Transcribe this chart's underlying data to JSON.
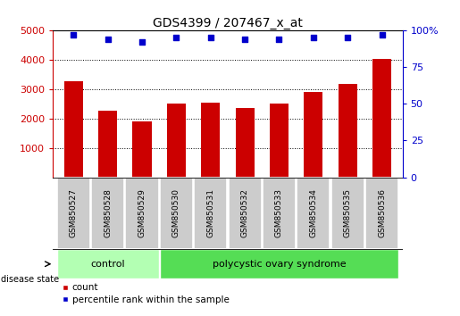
{
  "title": "GDS4399 / 207467_x_at",
  "samples": [
    "GSM850527",
    "GSM850528",
    "GSM850529",
    "GSM850530",
    "GSM850531",
    "GSM850532",
    "GSM850533",
    "GSM850534",
    "GSM850535",
    "GSM850536"
  ],
  "counts": [
    3270,
    2270,
    1890,
    2510,
    2545,
    2360,
    2510,
    2890,
    3160,
    4010
  ],
  "percentiles": [
    97,
    94,
    92,
    95,
    95,
    94,
    94,
    95,
    95,
    97
  ],
  "count_ylim": [
    0,
    5000
  ],
  "count_yticks": [
    1000,
    2000,
    3000,
    4000,
    5000
  ],
  "percentile_ylim": [
    0,
    100
  ],
  "percentile_yticks": [
    0,
    25,
    50,
    75,
    100
  ],
  "bar_color": "#cc0000",
  "dot_color": "#0000cc",
  "background_color": "#ffffff",
  "control_label": "control",
  "disease_label": "polycystic ovary syndrome",
  "disease_state_label": "disease state",
  "legend_count": "count",
  "legend_percentile": "percentile rank within the sample",
  "control_color": "#b3ffb3",
  "disease_color": "#55dd55",
  "xticklabel_bg": "#cccccc",
  "n_control": 3,
  "n_disease": 7,
  "title_fontsize": 10,
  "tick_fontsize": 8,
  "label_fontsize": 8,
  "bar_width": 0.55
}
